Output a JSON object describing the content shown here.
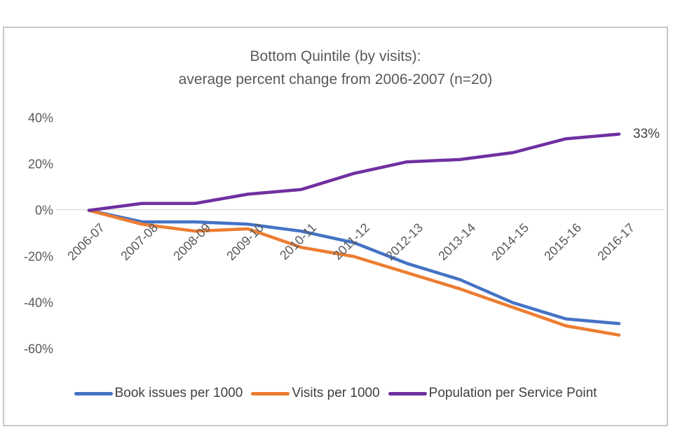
{
  "title": {
    "line1": "Bottom Quintile (by visits):",
    "line2": "average percent change from 2006-2007 (n=20)"
  },
  "chart_data": {
    "type": "line",
    "title": "Bottom Quintile (by visits): average percent change from 2006-2007 (n=20)",
    "categories": [
      "2006-07",
      "2007-08",
      "2008-09",
      "2009-10",
      "2010-11",
      "2011-12",
      "2012-13",
      "2013-14",
      "2014-15",
      "2015-16",
      "2016-17"
    ],
    "series": [
      {
        "name": "Book issues per 1000",
        "color": "#4472C4",
        "values": [
          0,
          -5,
          -5,
          -6,
          -9,
          -14,
          -23,
          -30,
          -40,
          -47,
          -49
        ]
      },
      {
        "name": "Visits per 1000",
        "color": "#ED7D31",
        "values": [
          0,
          -6,
          -9,
          -8,
          -16,
          -20,
          -27,
          -34,
          -42,
          -50,
          -54
        ]
      },
      {
        "name": "Population per Service Point",
        "color": "#7030A0",
        "values": [
          0,
          3,
          3,
          7,
          9,
          16,
          21,
          22,
          25,
          31,
          33
        ]
      }
    ],
    "y_axis": {
      "ticks": [
        {
          "label": "40%",
          "value": 40
        },
        {
          "label": "20%",
          "value": 20
        },
        {
          "label": "0%",
          "value": 0
        },
        {
          "label": "-20%",
          "value": -20
        },
        {
          "label": "-40%",
          "value": -40
        },
        {
          "label": "-60%",
          "value": -60
        }
      ]
    },
    "ylim": [
      -60,
      40
    ],
    "gridlines": "zero-line-only",
    "legend_position": "bottom",
    "annotation": {
      "text": "33%",
      "series_index": 2,
      "category_index": 10
    }
  },
  "legend": {
    "items": [
      {
        "label": "Book issues per 1000",
        "color": "#4472C4"
      },
      {
        "label": "Visits per 1000",
        "color": "#ED7D31"
      },
      {
        "label": "Population per Service Point",
        "color": "#7030A0"
      }
    ]
  },
  "colors": {
    "grid": "#D9D9D9",
    "axis_text": "#595959",
    "title_text": "#595959",
    "frame_border": "#C8C8C8"
  }
}
